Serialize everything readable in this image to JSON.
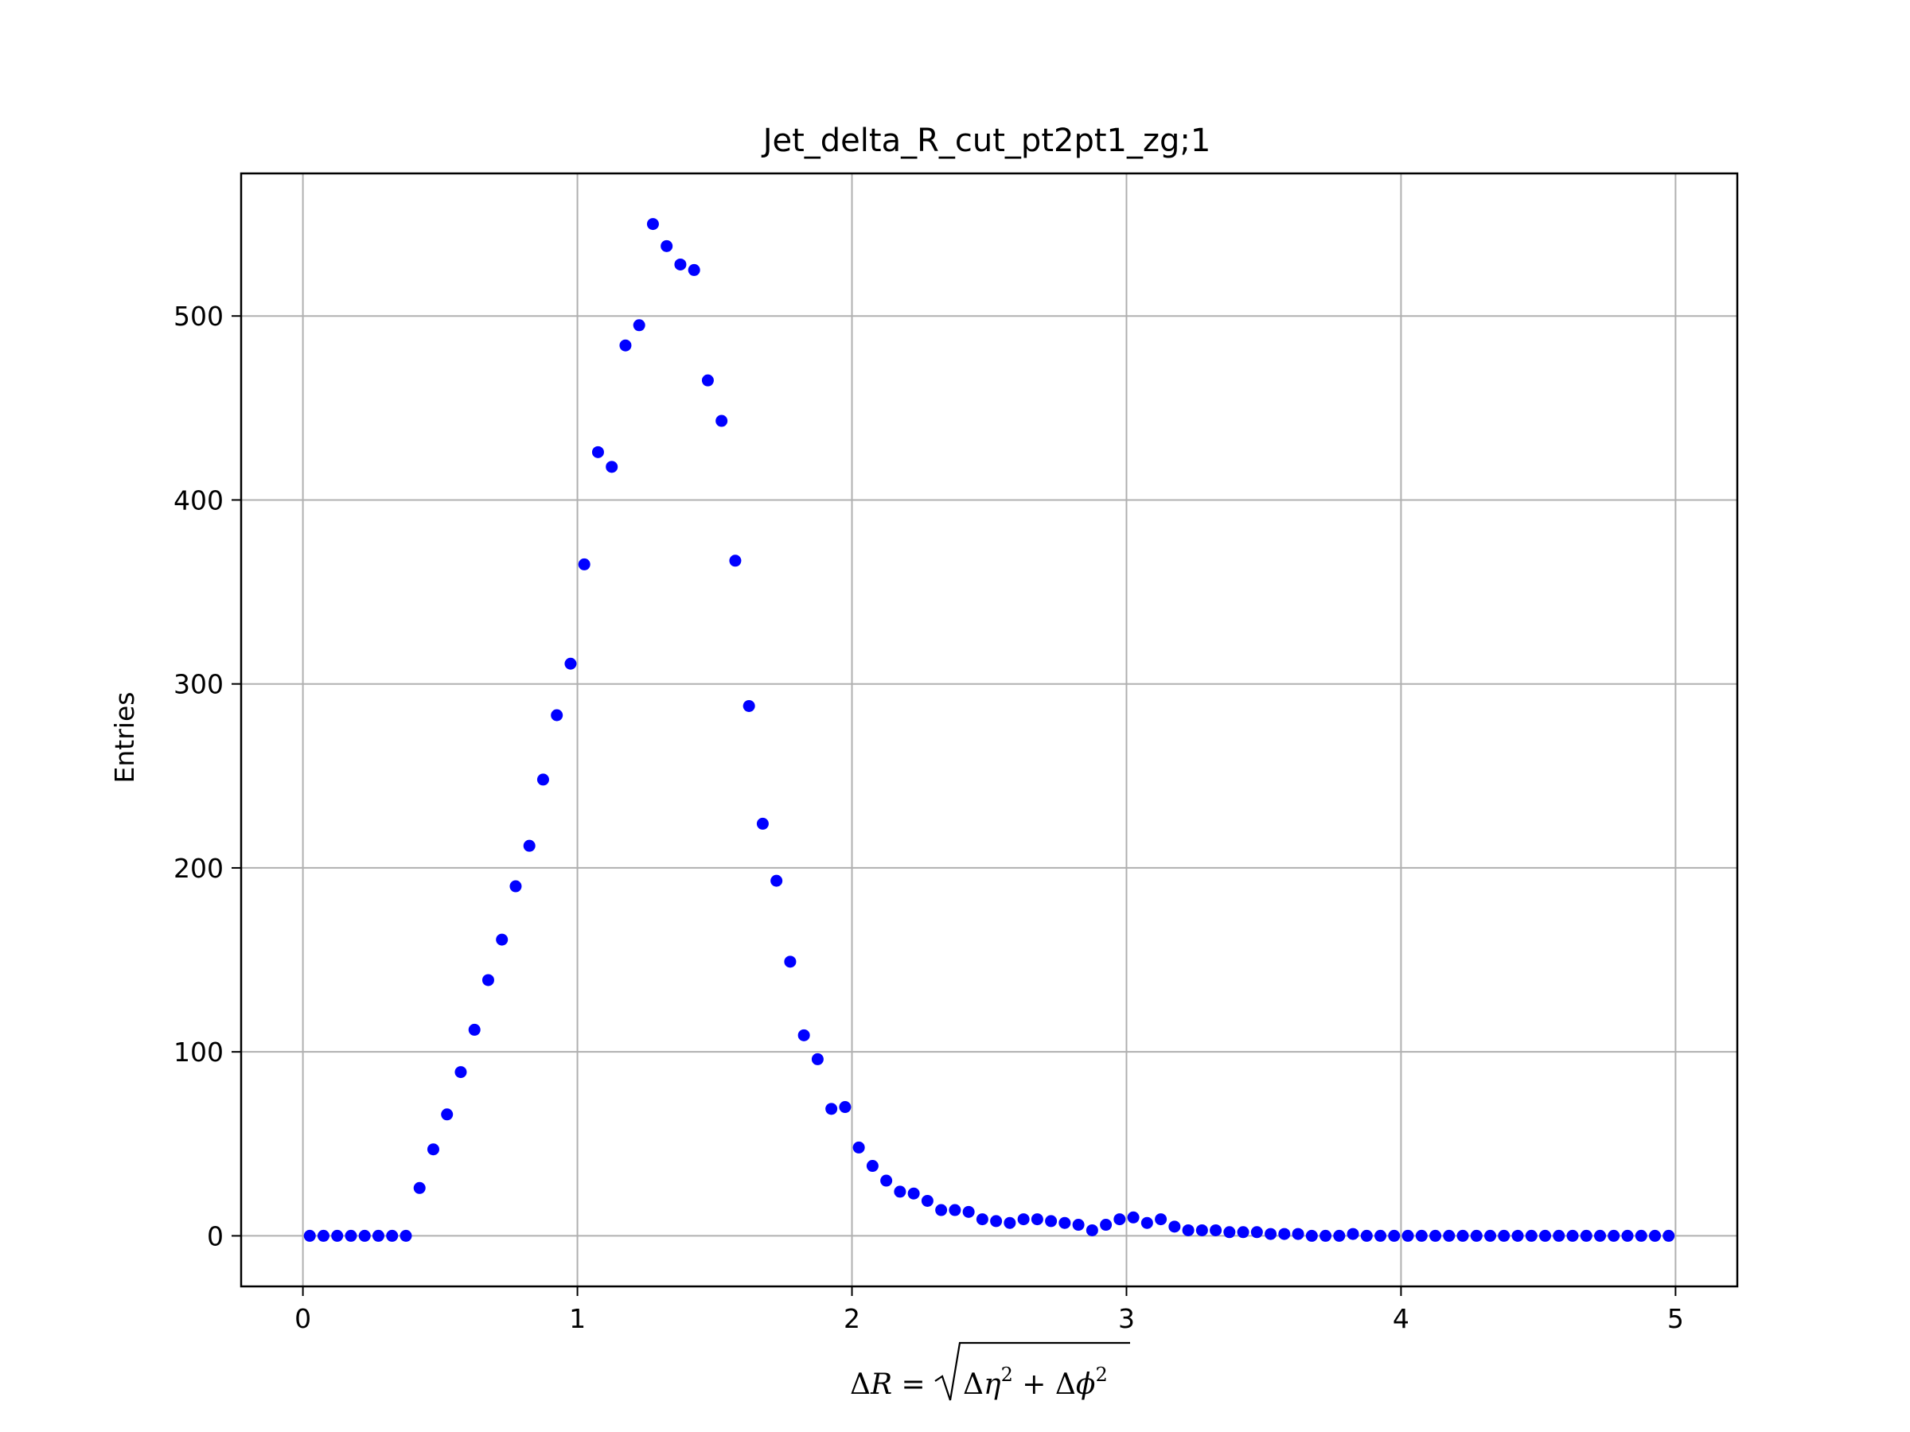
{
  "chart_data": {
    "type": "scatter",
    "title": "Jet_delta_R_cut_pt2pt1_zg;1",
    "xlabel": "ΔR = √(Δη² + Δϕ²)",
    "ylabel": "Entries",
    "xlim": [
      -0.225,
      5.225
    ],
    "ylim": [
      -27.5,
      577.5
    ],
    "x_ticks": [
      0,
      1,
      2,
      3,
      4,
      5
    ],
    "y_ticks": [
      0,
      100,
      200,
      300,
      400,
      500
    ],
    "grid": true,
    "marker_color": "#0000ff",
    "x": [
      0.025,
      0.075,
      0.125,
      0.175,
      0.225,
      0.275,
      0.325,
      0.375,
      0.425,
      0.475,
      0.525,
      0.575,
      0.625,
      0.675,
      0.725,
      0.775,
      0.825,
      0.875,
      0.925,
      0.975,
      1.025,
      1.075,
      1.125,
      1.175,
      1.225,
      1.275,
      1.325,
      1.375,
      1.425,
      1.475,
      1.525,
      1.575,
      1.625,
      1.675,
      1.725,
      1.775,
      1.825,
      1.875,
      1.925,
      1.975,
      2.025,
      2.075,
      2.125,
      2.175,
      2.225,
      2.275,
      2.325,
      2.375,
      2.425,
      2.475,
      2.525,
      2.575,
      2.625,
      2.675,
      2.725,
      2.775,
      2.825,
      2.875,
      2.925,
      2.975,
      3.025,
      3.075,
      3.125,
      3.175,
      3.225,
      3.275,
      3.325,
      3.375,
      3.425,
      3.475,
      3.525,
      3.575,
      3.625,
      3.675,
      3.725,
      3.775,
      3.825,
      3.875,
      3.925,
      3.975,
      4.025,
      4.075,
      4.125,
      4.175,
      4.225,
      4.275,
      4.325,
      4.375,
      4.425,
      4.475,
      4.525,
      4.575,
      4.625,
      4.675,
      4.725,
      4.775,
      4.825,
      4.875,
      4.925,
      4.975
    ],
    "y": [
      0,
      0,
      0,
      0,
      0,
      0,
      0,
      0,
      26,
      47,
      66,
      89,
      112,
      139,
      161,
      190,
      212,
      248,
      283,
      311,
      365,
      426,
      418,
      484,
      495,
      550,
      538,
      528,
      525,
      465,
      443,
      367,
      288,
      224,
      193,
      149,
      109,
      96,
      69,
      70,
      48,
      38,
      30,
      24,
      23,
      19,
      14,
      14,
      13,
      9,
      8,
      7,
      9,
      9,
      8,
      7,
      6,
      3,
      6,
      9,
      10,
      7,
      9,
      5,
      3,
      3,
      3,
      2,
      2,
      2,
      1,
      1,
      1,
      0,
      0,
      0,
      1,
      0,
      0,
      0,
      0,
      0,
      0,
      0,
      0,
      0,
      0,
      0,
      0,
      0,
      0,
      0,
      0,
      0,
      0,
      0,
      0,
      0,
      0,
      0
    ]
  }
}
